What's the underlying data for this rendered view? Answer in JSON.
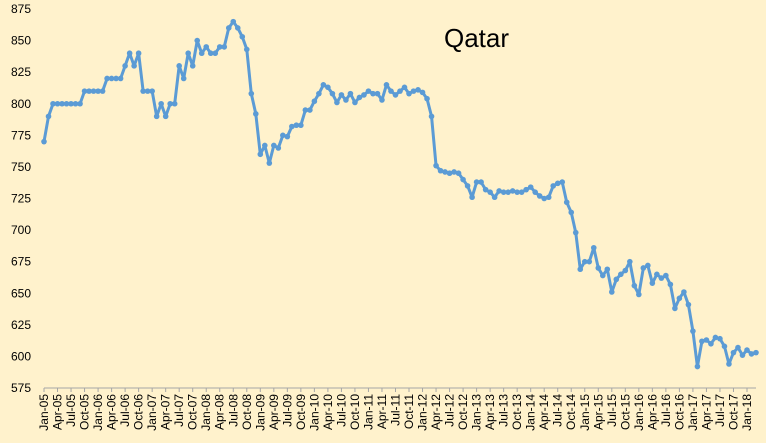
{
  "chart_data": {
    "type": "line",
    "title": "Qatar",
    "xlabel": "",
    "ylabel": "",
    "ylim": [
      575,
      875
    ],
    "yticks": [
      575,
      600,
      625,
      650,
      675,
      700,
      725,
      750,
      775,
      800,
      825,
      850,
      875
    ],
    "grid": "none",
    "legend": "none",
    "colors": {
      "background": "#fff2cc",
      "line": "#5b9bd5",
      "axis": "#a6a6a6"
    },
    "x_tick_labels": [
      "Jan-05",
      "Apr-05",
      "Jul-05",
      "Oct-05",
      "Jan-06",
      "Apr-06",
      "Jul-06",
      "Oct-06",
      "Jan-07",
      "Apr-07",
      "Jul-07",
      "Oct-07",
      "Jan-08",
      "Apr-08",
      "Jul-08",
      "Oct-08",
      "Jan-09",
      "Apr-09",
      "Jul-09",
      "Oct-09",
      "Jan-10",
      "Apr-10",
      "Jul-10",
      "Oct-10",
      "Jan-11",
      "Apr-11",
      "Jul-11",
      "Oct-11",
      "Jan-12",
      "Apr-12",
      "Jul-12",
      "Oct-12",
      "Jan-13",
      "Apr-13",
      "Jul-13",
      "Oct-13",
      "Jan-14",
      "Apr-14",
      "Jul-14",
      "Oct-14",
      "Jan-15",
      "Apr-15",
      "Jul-15",
      "Oct-15",
      "Jan-16",
      "Apr-16",
      "Jul-16",
      "Oct-16",
      "Jan-17",
      "Apr-17",
      "Jul-17",
      "Oct-17",
      "Jan-18"
    ],
    "series": [
      {
        "start": "Jan-05",
        "values": [
          770,
          790,
          800,
          800,
          800,
          800,
          800,
          800,
          800,
          810,
          810,
          810,
          810,
          810,
          820,
          820,
          820,
          820,
          830,
          840,
          830,
          840,
          810,
          810,
          810,
          790,
          800,
          790,
          800,
          800,
          830,
          820,
          840,
          830,
          850,
          840,
          845,
          840,
          840,
          845,
          845,
          860,
          865,
          860,
          853,
          843,
          808,
          792,
          760,
          767,
          753,
          767,
          765,
          775,
          774,
          782,
          783,
          783,
          795,
          795,
          802,
          808,
          815,
          813,
          808,
          801,
          807,
          803,
          808,
          801,
          805,
          807,
          810,
          808,
          808,
          803,
          815,
          810,
          807,
          810,
          813,
          808,
          810,
          811,
          809,
          804,
          790,
          751,
          747,
          746,
          745,
          746,
          745,
          740,
          735,
          726,
          738,
          738,
          732,
          730,
          726,
          731,
          730,
          730,
          731,
          730,
          730,
          732,
          734,
          730,
          727,
          725,
          726,
          735,
          737,
          738,
          722,
          714,
          698,
          669,
          675,
          675,
          686,
          670,
          664,
          669,
          651,
          661,
          665,
          668,
          675,
          656,
          649,
          670,
          672,
          658,
          665,
          662,
          664,
          657,
          638,
          646,
          651,
          641,
          620,
          592,
          612,
          613,
          610,
          615,
          614,
          608,
          594,
          603,
          607,
          601,
          605,
          602,
          603
        ]
      }
    ]
  }
}
